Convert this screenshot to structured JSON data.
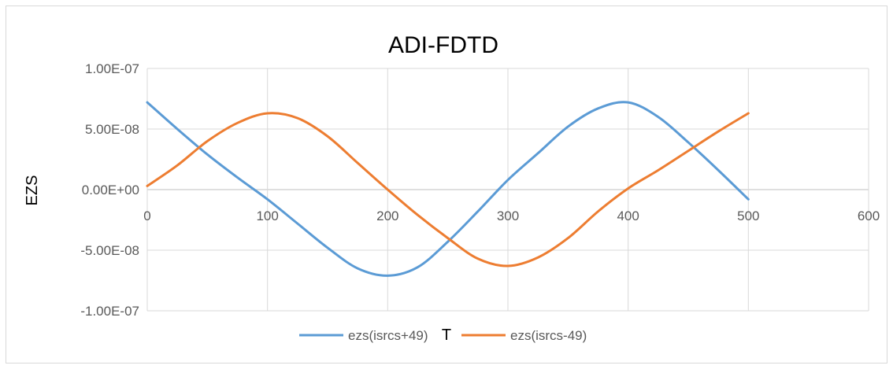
{
  "chart_data": {
    "type": "line",
    "title": "ADI-FDTD",
    "xlabel": "T",
    "ylabel": "EZS",
    "xlim": [
      0,
      600
    ],
    "ylim": [
      -1e-07,
      1e-07
    ],
    "x_ticks": [
      0,
      100,
      200,
      300,
      400,
      500,
      600
    ],
    "x_tick_labels": [
      "0",
      "100",
      "200",
      "300",
      "400",
      "500",
      "600"
    ],
    "y_ticks": [
      1e-07,
      5e-08,
      0,
      -5e-08,
      -1e-07
    ],
    "y_tick_labels": [
      "1.00E-07",
      "5.00E-08",
      "0.00E+00",
      "-5.00E-08",
      "-1.00E-07"
    ],
    "grid": true,
    "legend_position": "bottom",
    "series": [
      {
        "name": "ezs(isrcs+49)",
        "color": "#5b9bd5",
        "x": [
          0,
          25,
          50,
          75,
          100,
          125,
          150,
          175,
          200,
          225,
          250,
          275,
          300,
          325,
          350,
          375,
          400,
          425,
          450,
          475,
          500
        ],
        "y": [
          7.2e-08,
          5e-08,
          2.9e-08,
          1e-08,
          -8e-09,
          -2.8e-08,
          -4.8e-08,
          -6.5e-08,
          -7.1e-08,
          -6.4e-08,
          -4.3e-08,
          -1.8e-08,
          8e-09,
          3e-08,
          5.2e-08,
          6.7e-08,
          7.2e-08,
          6e-08,
          3.9e-08,
          1.6e-08,
          -8e-09
        ]
      },
      {
        "name": "ezs(isrcs-49)",
        "color": "#ed7d31",
        "x": [
          0,
          25,
          50,
          75,
          100,
          125,
          150,
          175,
          200,
          225,
          250,
          275,
          300,
          325,
          350,
          375,
          400,
          425,
          450,
          475,
          500
        ],
        "y": [
          3e-09,
          2e-08,
          4e-08,
          5.5e-08,
          6.3e-08,
          5.9e-08,
          4.4e-08,
          2.2e-08,
          0,
          -2.1e-08,
          -4e-08,
          -5.7e-08,
          -6.3e-08,
          -5.6e-08,
          -4e-08,
          -1.8e-08,
          1e-09,
          1.6e-08,
          3.2e-08,
          4.8e-08,
          6.3e-08
        ]
      }
    ]
  }
}
